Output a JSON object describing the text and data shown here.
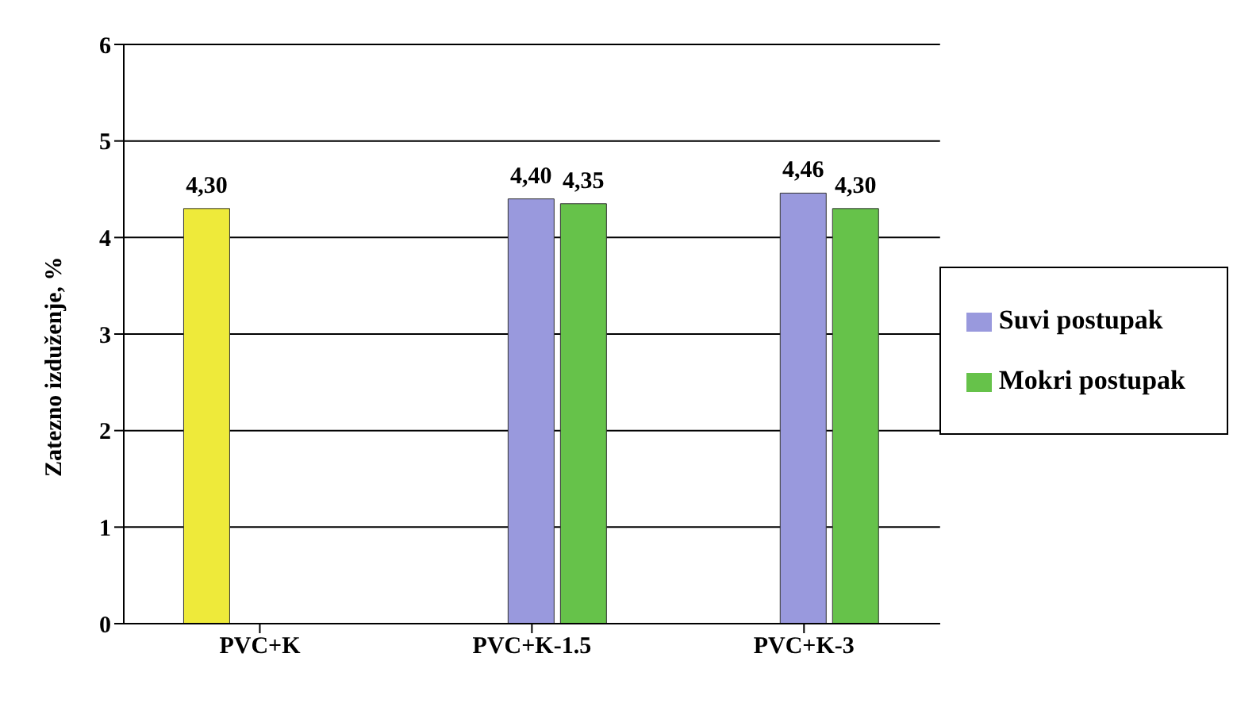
{
  "chart_data": {
    "type": "bar",
    "ylabel": "Zatezno izduženje, %",
    "categories": [
      "PVC+K",
      "PVC+K-1.5",
      "PVC+K-3"
    ],
    "series": [
      {
        "color": "#eeea3a",
        "values": [
          4.3,
          null,
          null
        ],
        "value_labels": [
          "4,30",
          null,
          null
        ]
      },
      {
        "name": "Suvi postupak",
        "color": "#9999dd",
        "values": [
          null,
          4.4,
          4.46
        ],
        "value_labels": [
          null,
          "4,40",
          "4,46"
        ]
      },
      {
        "name": "Mokri postupak",
        "color": "#66c24a",
        "values": [
          null,
          4.35,
          4.3
        ],
        "value_labels": [
          null,
          "4,35",
          "4,30"
        ]
      }
    ],
    "ylim": [
      0,
      6
    ],
    "yticks": [
      0,
      1,
      2,
      3,
      4,
      5,
      6
    ],
    "grid": "y",
    "legend": "right"
  }
}
